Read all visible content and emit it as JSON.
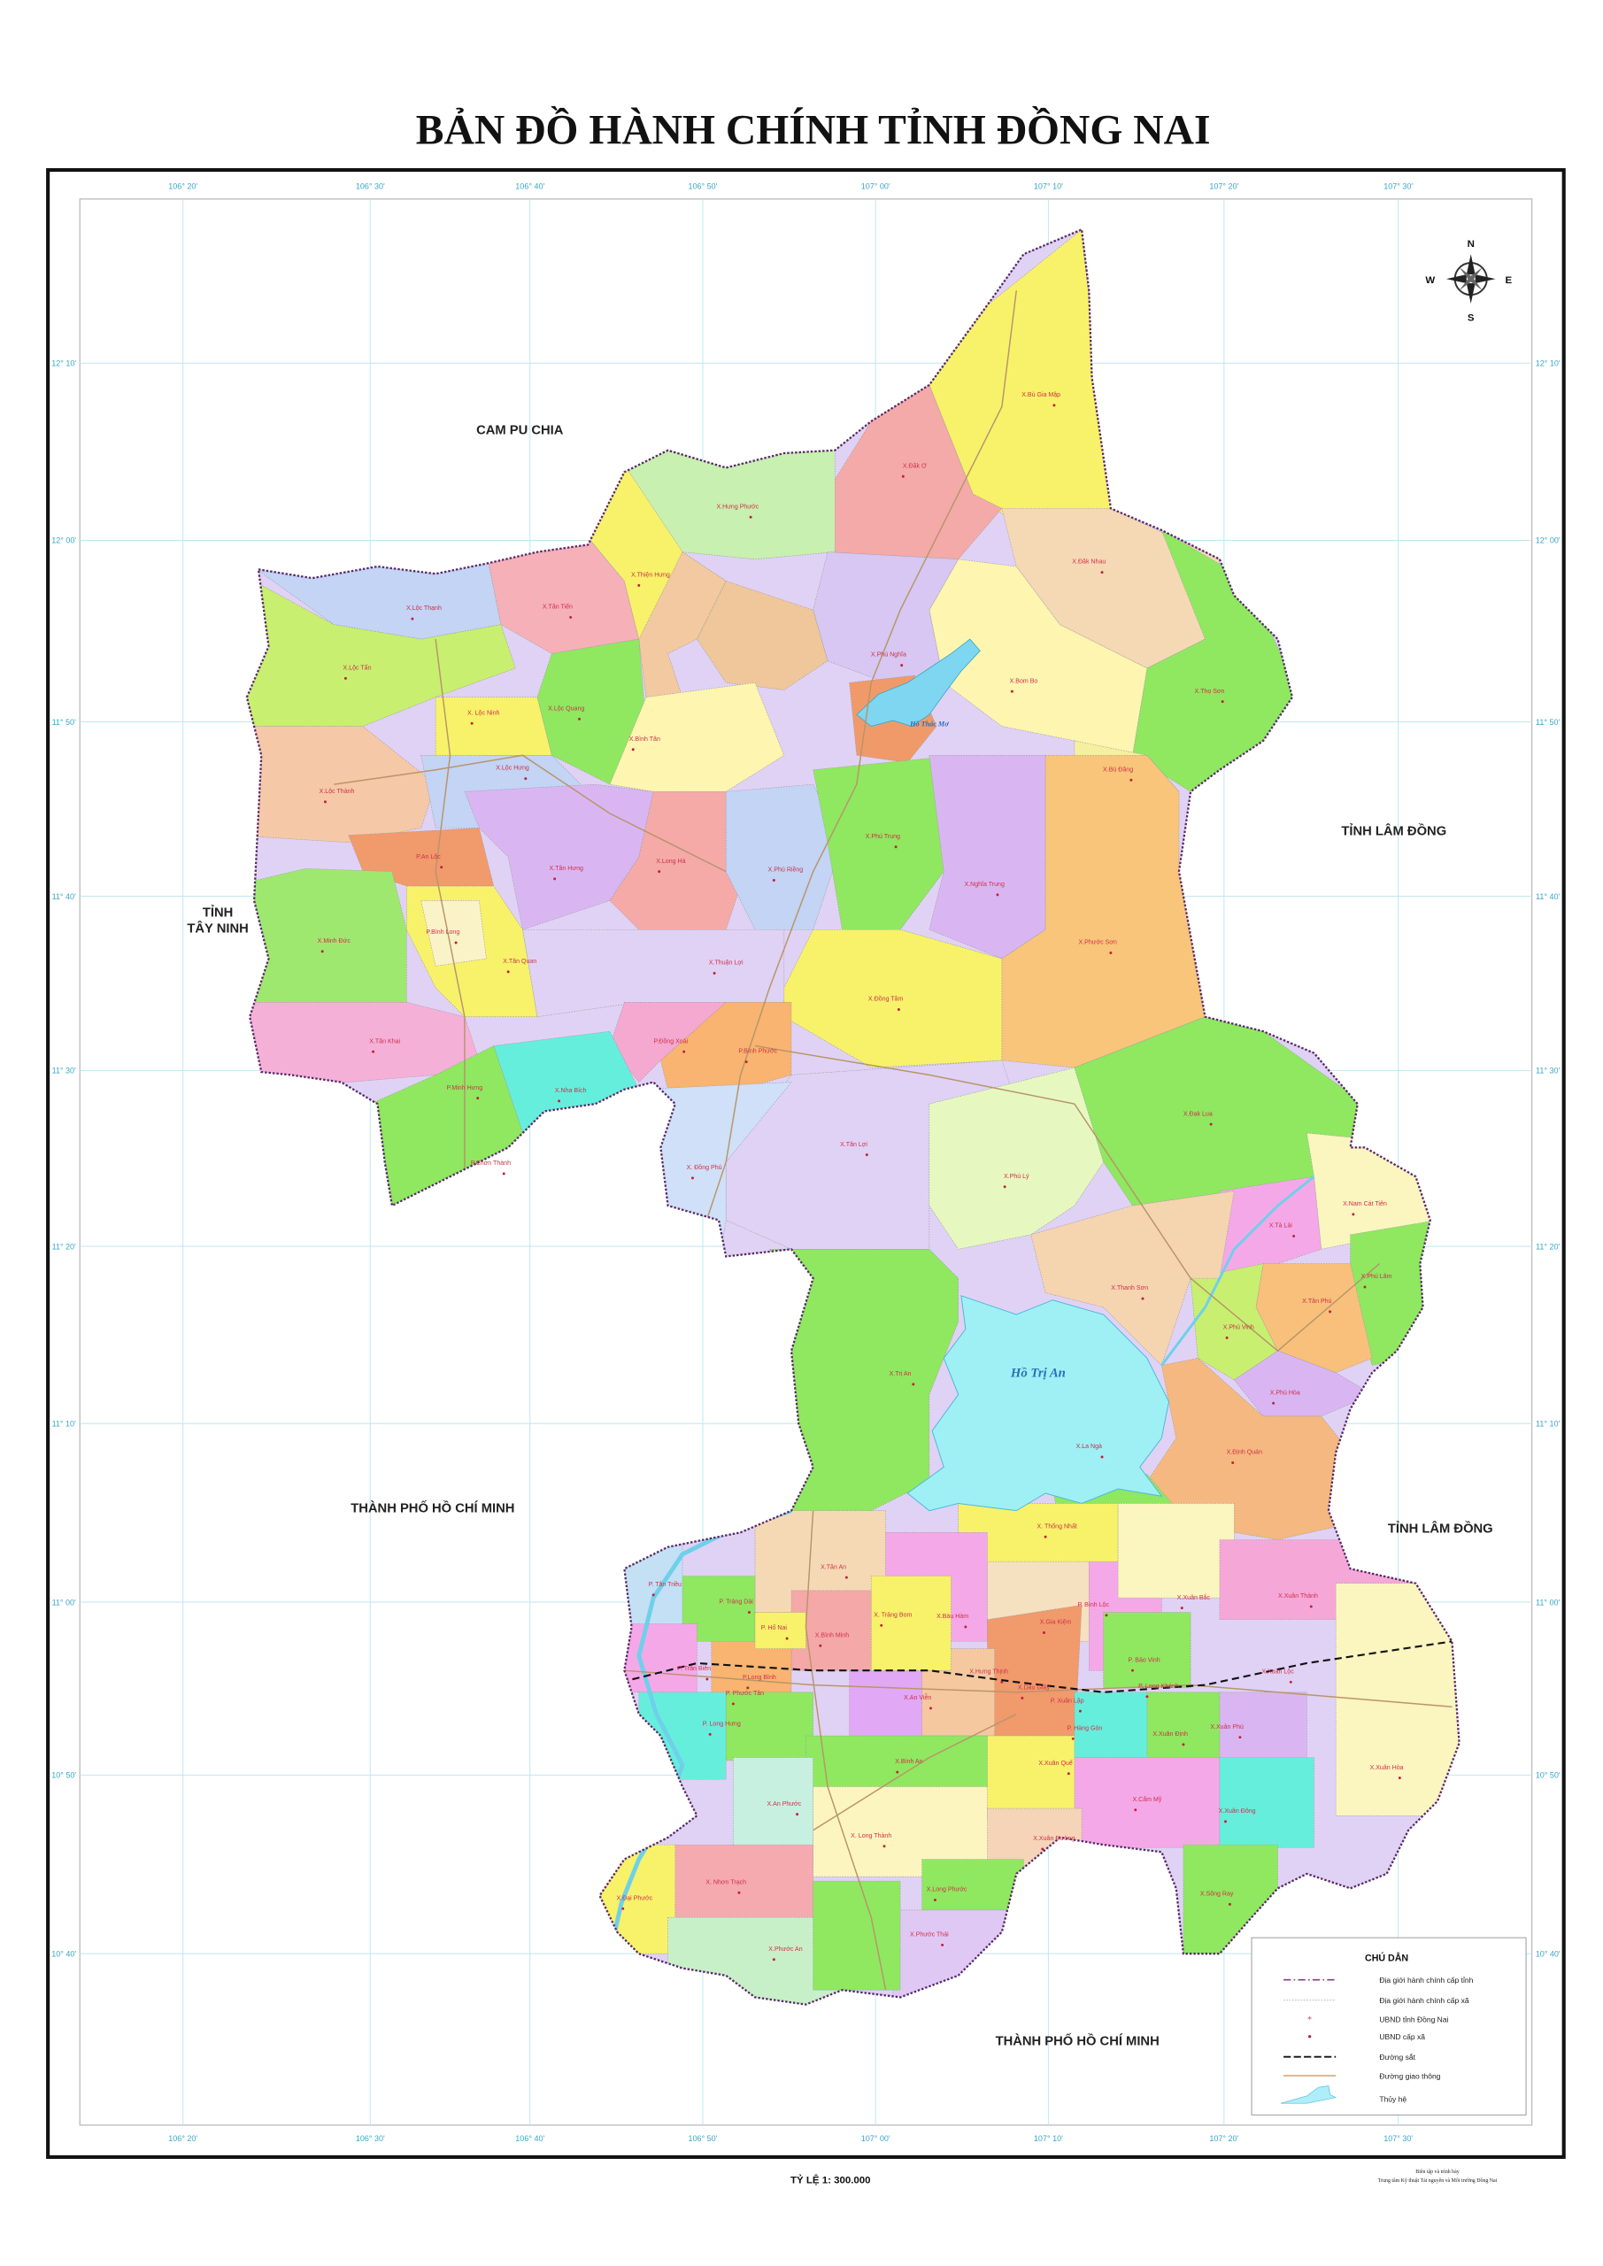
{
  "title": "BẢN ĐỒ HÀNH CHÍNH TỈNH ĐỒNG NAI",
  "longitude_ticks": [
    "106° 20'",
    "106° 30'",
    "106° 40'",
    "106° 50'",
    "107° 00'",
    "107° 10'",
    "107° 20'",
    "107° 30'"
  ],
  "latitude_ticks": [
    "12° 10'",
    "12° 00'",
    "11° 50'",
    "11° 40'",
    "11° 30'",
    "11° 20'",
    "11° 10'",
    "11° 00'",
    "10° 50'",
    "10° 40'"
  ],
  "neighbors": {
    "cambodia": "CAM PU CHIA",
    "tay_ninh_1": "TỈNH",
    "tay_ninh_2": "TÂY NINH",
    "lam_dong_north": "TỈNH LÂM ĐỒNG",
    "lam_dong_south": "TỈNH LÂM ĐỒNG",
    "hcm_west": "THÀNH PHỐ HỒ CHÍ MINH",
    "hcm_south": "THÀNH PHỐ HỒ CHÍ MINH"
  },
  "lakes": {
    "tri_an": "Hồ Trị An",
    "thac_mo": "Hồ Thác Mơ"
  },
  "compass": {
    "n": "N",
    "s": "S",
    "e": "E",
    "w": "W"
  },
  "communes": [
    "X.Bù Gia Mập",
    "X.Đăk Ơ",
    "X.Hưng Phước",
    "X.Thiện Hưng",
    "X.Đăk Nhau",
    "X.Lộc Thạnh",
    "X.Tân Tiến",
    "X.Lộc Tấn",
    "X.Phú Nghĩa",
    "X.Bom Bo",
    "X.Thọ Sơn",
    "X. Lộc Ninh",
    "X.Lộc Quang",
    "X.Bình Tân",
    "X.Lộc Hưng",
    "X.Lộc Thành",
    "X.Bù Đăng",
    "X.Long Hà",
    "P.An Lộc",
    "X.Tân Hưng",
    "X.Phú Trung",
    "X.Phú Riềng",
    "X.Nghĩa Trung",
    "X.Minh Đức",
    "P.Bình Long",
    "X.Tân Quan",
    "X.Phước Sơn",
    "X.Thuận Lợi",
    "X.Đồng Tâm",
    "X.Tân Khai",
    "P.Đồng Xoài",
    "P.Bình Phước",
    "P.Minh Hưng",
    "X.Nha Bích",
    "X.Tân Lợi",
    "X. Đồng Phú",
    "P.Chơn Thành",
    "X.Phú Lý",
    "X.Đak Lua",
    "X.Nam Cát Tiên",
    "X.Tà Lài",
    "X.Phú Lâm",
    "X.Tân Phú",
    "X.Phú Vinh",
    "X.Thanh Sơn",
    "X.Phú Hòa",
    "X.Trị An",
    "X.Định Quán",
    "X.La Ngà",
    "X. Thống Nhất",
    "X.Tân An",
    "P. Tân Triều",
    "P. Trảng Dài",
    "X.Gia Kiệm",
    "X.Bàu Hàm",
    "X.Xuân Bắc",
    "X.Xuân Thành",
    "X. Trảng Bom",
    "P. Hố Nai",
    "X.Bình Minh",
    "P. Bình Lộc",
    "P. Bảo Vinh",
    "P. Trấn Biên",
    "P.Long Bình",
    "X.Hưng Thịnh",
    "X.Dầu Giây",
    "X.Xuân Lộc",
    "P. Long Khánh",
    "P. Xuân Lập",
    "P. Phước Tân",
    "X.An Viễn",
    "P. Long Hưng",
    "X.Xuân Định",
    "P. Hàng Gòn",
    "X.Xuân Phú",
    "X.Bình An",
    "X.Xuân Quế",
    "X.Xuân Đông",
    "X.An Phước",
    "X.Cẩm Mỹ",
    "X. Long Thành",
    "X.Xuân Đường",
    "X. Nhơn Trạch",
    "X.Long Phước",
    "X.Sông Ray",
    "X.Đại Phước",
    "X.Phước Thái",
    "X.Phước An",
    "X.Xuân Hòa"
  ],
  "legend": {
    "title": "CHÚ DẪN",
    "items": [
      {
        "label": "Địa giới hành chính cấp tỉnh",
        "symbol": "dash-dot-purple"
      },
      {
        "label": "Địa giới hành chính cấp xã",
        "symbol": "dotted-grey"
      },
      {
        "label": "UBND tỉnh Đồng Nai",
        "symbol": "red-star"
      },
      {
        "label": "UBND cấp xã",
        "symbol": "red-dot"
      },
      {
        "label": "Đường sắt",
        "symbol": "black-dashed"
      },
      {
        "label": "Đường giao thông",
        "symbol": "tan-line"
      },
      {
        "label": "Thủy hệ",
        "symbol": "water-shape"
      }
    ]
  },
  "scale": "TỶ LỆ 1: 300.000",
  "credit": {
    "line1": "Biên tập và trình bày",
    "line2": "Trung tâm Kỹ thuật Tài nguyên và Môi trường Đồng Nai"
  },
  "colors": {
    "commune_label": "#d0304a",
    "coordinate": "#3aa6c8",
    "water": "#8fe4f5",
    "province_border": "#5a2a6a"
  }
}
